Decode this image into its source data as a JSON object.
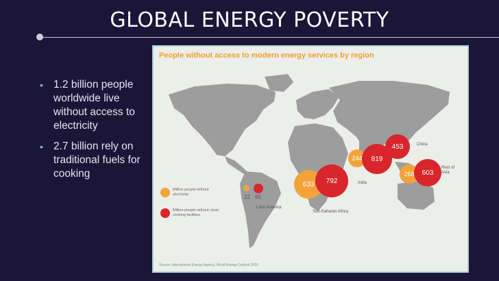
{
  "slide": {
    "title": "GLOBAL ENERGY POVERTY",
    "bullets": [
      {
        "mark": "•",
        "text": "1.2 billion people worldwide live without access to electricity"
      },
      {
        "mark": "•",
        "text": "2.7 billion rely on traditional fuels for cooking"
      }
    ]
  },
  "figure": {
    "title": "People without access to modern energy services by region",
    "legend": [
      {
        "label": "Million people without electricity",
        "color": "#f3a33a"
      },
      {
        "label": "Million people without clean cooking facilities",
        "color": "#d9252c"
      }
    ],
    "regions": [
      {
        "name": "Latin America",
        "electricity": "22",
        "cooking": "65"
      },
      {
        "name": "Sub-Saharan Africa",
        "electricity": "633",
        "cooking": "792"
      },
      {
        "name": "India",
        "electricity": "244",
        "cooking": "819"
      },
      {
        "name": "China",
        "electricity": "",
        "cooking": "453"
      },
      {
        "name": "Rest of Asia",
        "electricity": "268",
        "cooking": "603"
      }
    ],
    "source": "Source: International Energy Agency, World Energy Outlook 2016"
  }
}
